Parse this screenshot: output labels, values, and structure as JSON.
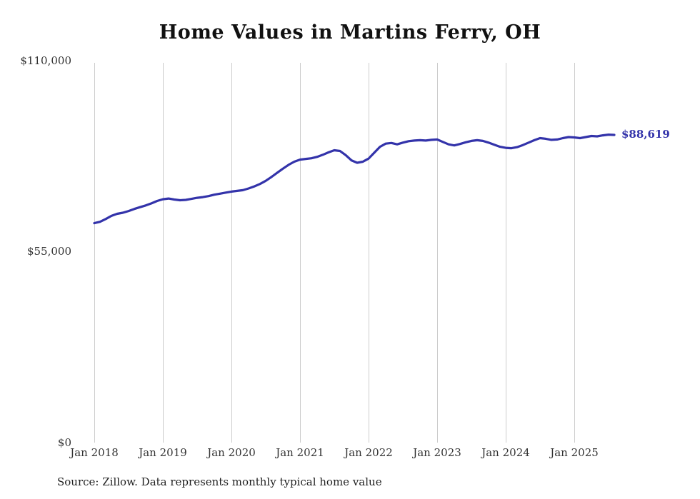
{
  "page": {
    "source_note": "Source: Zillow. Data represents monthly typical home value"
  },
  "chart_data": {
    "type": "line",
    "title": "Home Values in Martins Ferry, OH",
    "series_name": "Monthly typical home value",
    "unit": "USD",
    "start_month": "2018-01",
    "end_month": "2025-08",
    "values": [
      63200,
      63600,
      64400,
      65300,
      65900,
      66200,
      66700,
      67300,
      67800,
      68300,
      68900,
      69600,
      70100,
      70300,
      70000,
      69800,
      69900,
      70200,
      70500,
      70700,
      71000,
      71400,
      71700,
      72000,
      72300,
      72500,
      72700,
      73200,
      73800,
      74500,
      75400,
      76500,
      77700,
      78900,
      80000,
      80900,
      81500,
      81700,
      81900,
      82300,
      82900,
      83600,
      84200,
      84000,
      82800,
      81300,
      80600,
      80900,
      81800,
      83500,
      85200,
      86100,
      86300,
      85900,
      86400,
      86800,
      87000,
      87100,
      87000,
      87200,
      87300,
      86600,
      85900,
      85600,
      86000,
      86500,
      86900,
      87100,
      86900,
      86400,
      85800,
      85200,
      84900,
      84800,
      85100,
      85700,
      86400,
      87100,
      87700,
      87500,
      87200,
      87300,
      87700,
      88000,
      87900,
      87700,
      88000,
      88300,
      88200,
      88500,
      88700,
      88619
    ],
    "final_value": 88619,
    "end_label": "$88,619",
    "ylim": [
      0,
      110000
    ],
    "y_tick_labels": [
      "$0",
      "$55,000",
      "$110,000"
    ],
    "x_tick_labels": [
      "Jan 2018",
      "Jan 2019",
      "Jan 2020",
      "Jan 2021",
      "Jan 2022",
      "Jan 2023",
      "Jan 2024",
      "Jan 2025"
    ],
    "line_color": "#3333aa",
    "grid_color": "#cccccc",
    "legend": "none",
    "grid": "vertical-only",
    "source": "Source: Zillow. Data represents monthly typical home value"
  }
}
